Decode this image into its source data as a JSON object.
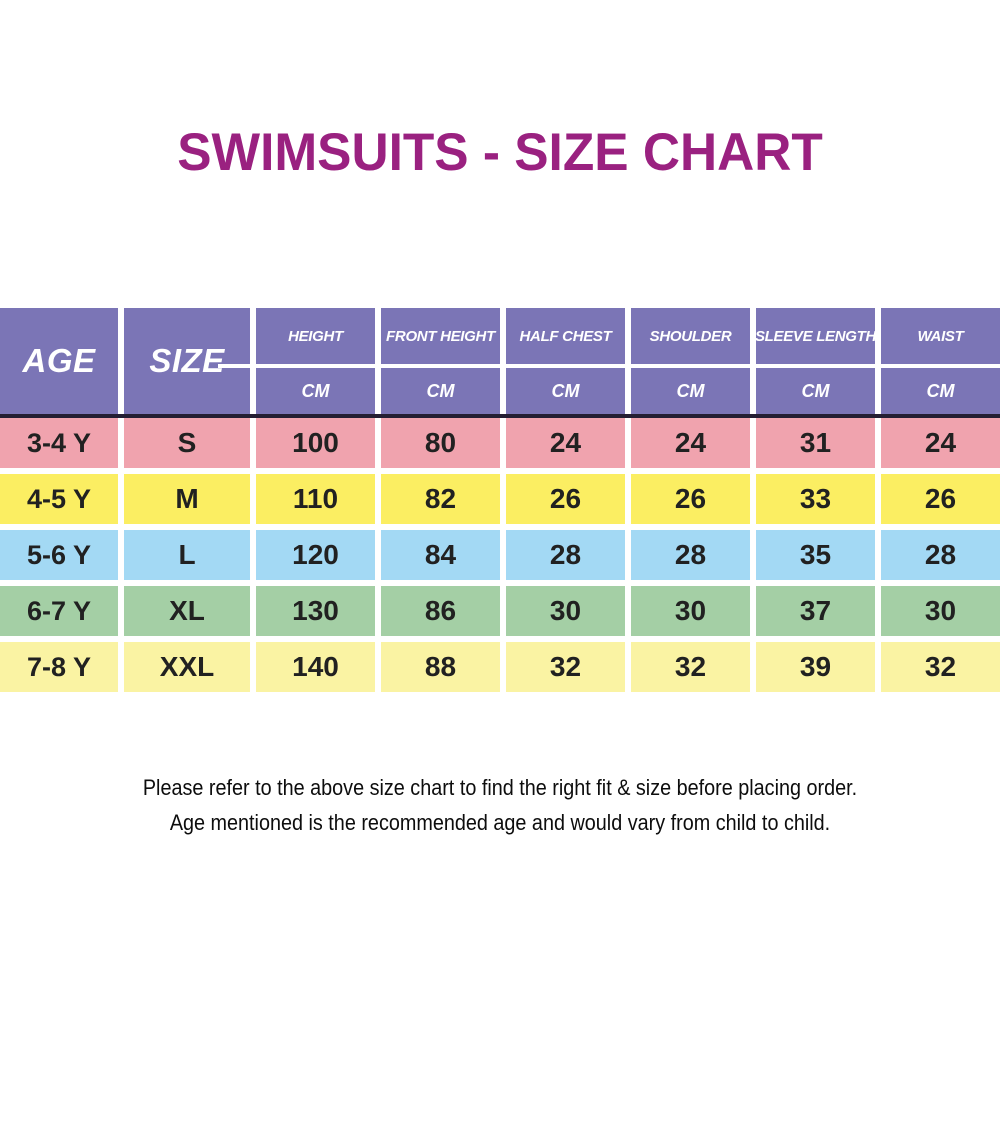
{
  "chart_data": {
    "type": "table",
    "title": "SWIMSUITS - SIZE CHART",
    "age_header": "AGE",
    "size_header": "SIZE",
    "columns": [
      {
        "label": "HEIGHT",
        "unit": "CM"
      },
      {
        "label": "FRONT HEIGHT",
        "unit": "CM"
      },
      {
        "label": "HALF CHEST",
        "unit": "CM"
      },
      {
        "label": "SHOULDER",
        "unit": "CM"
      },
      {
        "label": "SLEEVE LENGTH",
        "unit": "CM"
      },
      {
        "label": "WAIST",
        "unit": "CM"
      }
    ],
    "rows": [
      {
        "age": "3-4 Y",
        "size": "S",
        "values": [
          100,
          80,
          24,
          24,
          31,
          24
        ],
        "color": "#F0A3AE"
      },
      {
        "age": "4-5 Y",
        "size": "M",
        "values": [
          110,
          82,
          26,
          26,
          33,
          26
        ],
        "color": "#FBEE62"
      },
      {
        "age": "5-6 Y",
        "size": "L",
        "values": [
          120,
          84,
          28,
          28,
          35,
          28
        ],
        "color": "#A3D9F4"
      },
      {
        "age": "6-7 Y",
        "size": "XL",
        "values": [
          130,
          86,
          30,
          30,
          37,
          30
        ],
        "color": "#A4CFA5"
      },
      {
        "age": "7-8 Y",
        "size": "XXL",
        "values": [
          140,
          88,
          32,
          32,
          39,
          32
        ],
        "color": "#FAF3A3"
      }
    ]
  },
  "footer": {
    "line1": "Please refer to the above size chart to find the right fit & size before placing order.",
    "line2": "Age mentioned is the recommended age and would vary from child to child."
  },
  "colors": {
    "title": "#9A2180",
    "header_bg": "#7B75B6",
    "header_text": "#FFFFFF",
    "divider": "#241E33",
    "row_pink": "#F0A3AE",
    "row_yellow": "#FBEE62",
    "row_blue": "#A3D9F4",
    "row_green": "#A4CFA5",
    "row_pale_yellow": "#FAF3A3",
    "cell_text": "#212121",
    "footer_text": "#0D0D0D"
  }
}
